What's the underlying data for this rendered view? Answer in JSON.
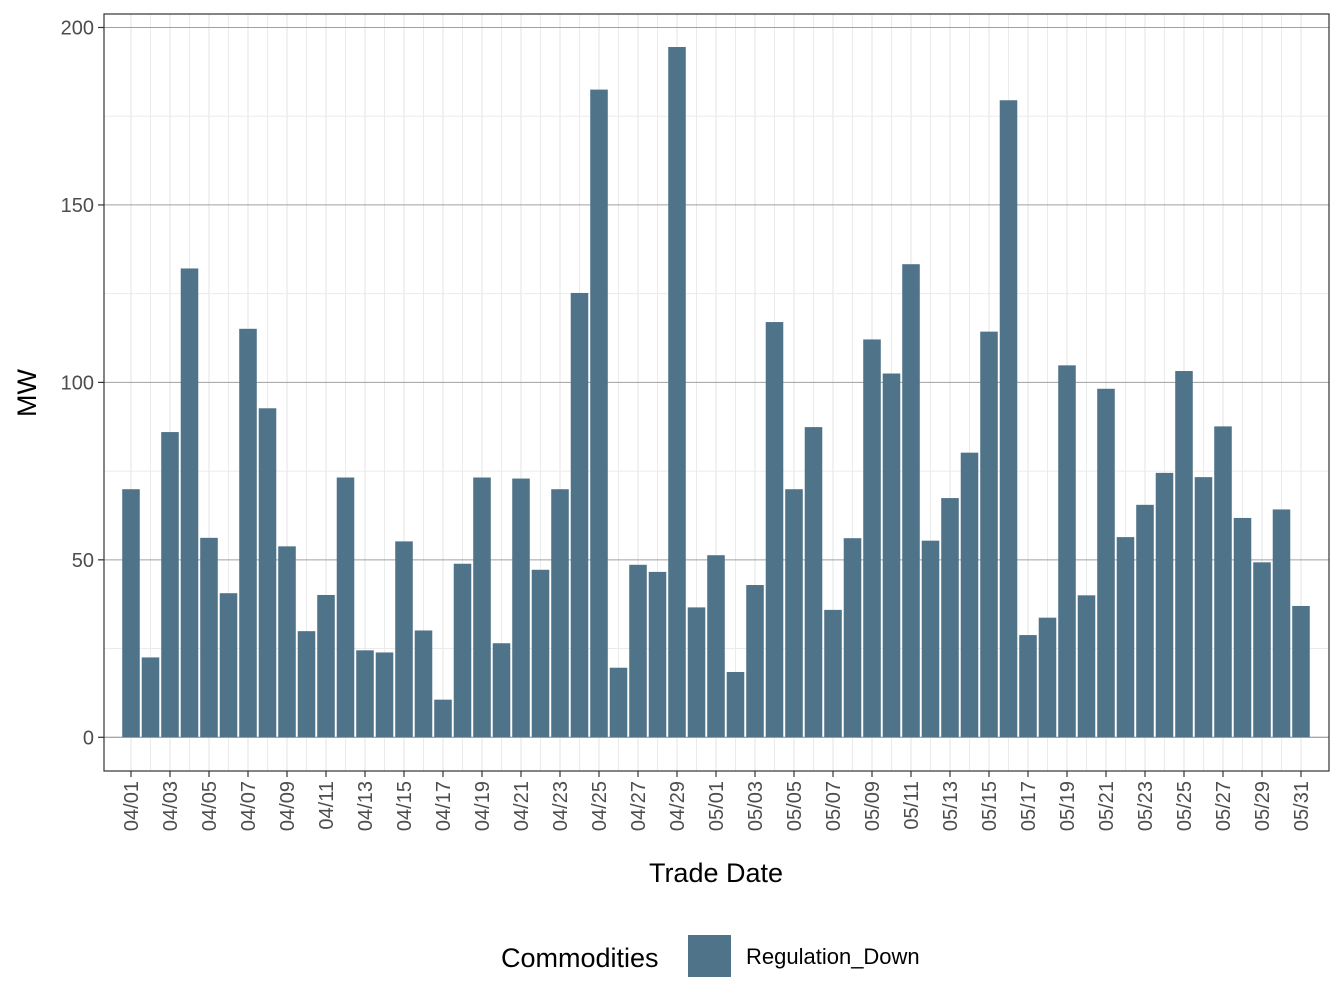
{
  "chart_data": {
    "type": "bar",
    "xlabel": "Trade Date",
    "ylabel": "MW",
    "ylim": [
      -9.5,
      203.8
    ],
    "y_ticks": [
      0,
      50,
      100,
      150,
      200
    ],
    "grid": true,
    "legend": {
      "title": "Commodities",
      "position": "bottom",
      "entries": [
        {
          "label": "Regulation_Down",
          "color": "#4f7388"
        }
      ]
    },
    "x_tick_labels": [
      "04/01",
      "04/03",
      "04/05",
      "04/07",
      "04/09",
      "04/11",
      "04/13",
      "04/15",
      "04/17",
      "04/19",
      "04/21",
      "04/23",
      "04/25",
      "04/27",
      "04/29",
      "05/01",
      "05/03",
      "05/05",
      "05/07",
      "05/09",
      "05/11",
      "05/13",
      "05/15",
      "05/17",
      "05/19",
      "05/21",
      "05/23",
      "05/25",
      "05/27",
      "05/29",
      "05/31"
    ],
    "categories": [
      "04/01",
      "04/02",
      "04/03",
      "04/04",
      "04/05",
      "04/06",
      "04/07",
      "04/08",
      "04/09",
      "04/10",
      "04/11",
      "04/12",
      "04/13",
      "04/14",
      "04/15",
      "04/16",
      "04/17",
      "04/18",
      "04/19",
      "04/20",
      "04/21",
      "04/22",
      "04/23",
      "04/24",
      "04/25",
      "04/26",
      "04/27",
      "04/28",
      "04/29",
      "04/30",
      "05/01",
      "05/02",
      "05/03",
      "05/04",
      "05/05",
      "05/06",
      "05/07",
      "05/08",
      "05/09",
      "05/10",
      "05/11",
      "05/12",
      "05/13",
      "05/14",
      "05/15",
      "05/16",
      "05/17",
      "05/18",
      "05/19",
      "05/20",
      "05/21",
      "05/22",
      "05/23",
      "05/24",
      "05/25",
      "05/26",
      "05/27",
      "05/28",
      "05/29",
      "05/30",
      "05/31"
    ],
    "series": [
      {
        "name": "Regulation_Down",
        "color": "#4f7388",
        "values": [
          69.9,
          22.5,
          86.0,
          132.1,
          56.2,
          40.6,
          115.1,
          92.7,
          53.8,
          29.9,
          40.1,
          73.2,
          24.5,
          23.9,
          55.2,
          30.1,
          10.6,
          48.9,
          73.2,
          26.5,
          72.9,
          47.2,
          69.9,
          125.2,
          182.5,
          19.6,
          48.6,
          46.6,
          194.5,
          36.6,
          51.3,
          18.4,
          42.9,
          117.0,
          69.9,
          87.4,
          35.9,
          56.1,
          112.1,
          102.5,
          133.3,
          55.4,
          67.4,
          80.2,
          114.3,
          179.5,
          28.8,
          33.7,
          104.8,
          40.0,
          98.2,
          56.4,
          65.5,
          74.5,
          103.2,
          73.3,
          87.6,
          61.8,
          49.3,
          64.2,
          37.0
        ]
      }
    ]
  }
}
